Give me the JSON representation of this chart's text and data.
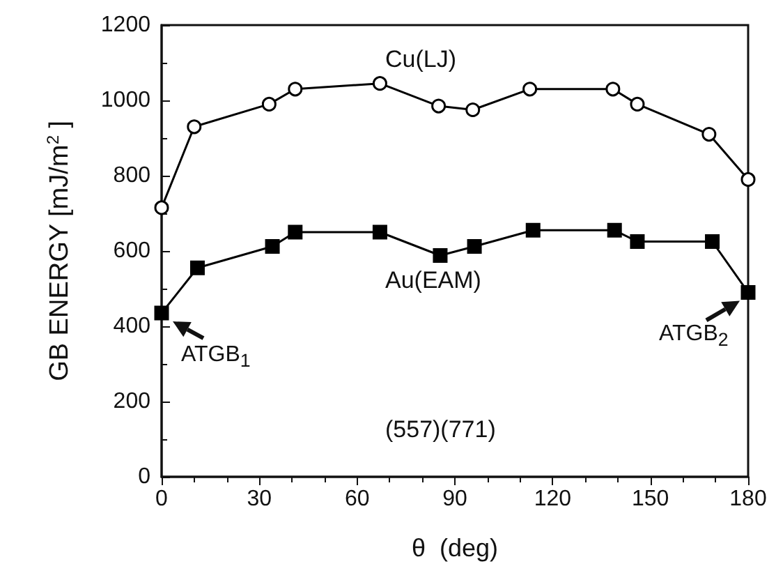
{
  "chart_data": {
    "type": "line",
    "xlabel": "θ  (deg)",
    "ylabel": "GB ENERGY [mJ/m$^{2}$ ]",
    "xlim": [
      0,
      180
    ],
    "xticks": [
      0,
      30,
      60,
      90,
      120,
      150,
      180
    ],
    "ylim": [
      0,
      1200
    ],
    "yticks": [
      0,
      200,
      400,
      600,
      800,
      1000,
      1200
    ],
    "grid": false,
    "series": [
      {
        "color": "#000000",
        "marker": "circle",
        "x": [
          0,
          10,
          33,
          41,
          67,
          85,
          95.5,
          113,
          138.5,
          146,
          168,
          180
        ],
        "values": [
          715,
          930,
          990,
          1030,
          1045,
          985,
          975,
          1030,
          1030,
          990,
          910,
          790
        ]
      },
      {
        "color": "#000000",
        "marker": "square",
        "x": [
          0,
          11,
          34,
          41,
          67,
          85.5,
          96,
          114,
          139,
          146,
          169,
          180
        ],
        "values": [
          435,
          555,
          612,
          650,
          650,
          588,
          612,
          655,
          655,
          625,
          625,
          490
        ]
      }
    ],
    "annotations": [
      "Cu(LJ)",
      "Au(EAM)",
      "(557)(771)",
      {
        "text": "ATGB$_{1}$",
        "x": 0,
        "y": 435
      },
      {
        "text": "ATGB$_{2}$",
        "x": 180,
        "y": 490
      }
    ]
  }
}
